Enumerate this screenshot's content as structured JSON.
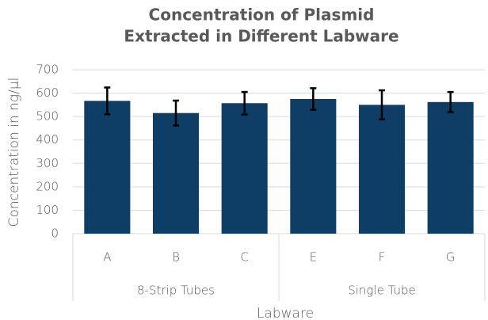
{
  "chart_data": {
    "type": "bar",
    "title": [
      "Concentration of Plasmid",
      "Extracted in Different Labware"
    ],
    "x_label": "Labware",
    "y_label": "Concentration in ng/µl",
    "groups": [
      {
        "name": "8-Strip Tubes",
        "categories": [
          "A",
          "B",
          "C"
        ]
      },
      {
        "name": "Single Tube",
        "categories": [
          "E",
          "F",
          "G"
        ]
      }
    ],
    "values": [
      567,
      515,
      557,
      575,
      550,
      562
    ],
    "errors": [
      57,
      53,
      48,
      46,
      62,
      43
    ],
    "color": "#0e3d66",
    "ylim": [
      0,
      700
    ],
    "yticks": [
      0,
      100,
      200,
      300,
      400,
      500,
      600,
      700
    ],
    "grid": true
  }
}
